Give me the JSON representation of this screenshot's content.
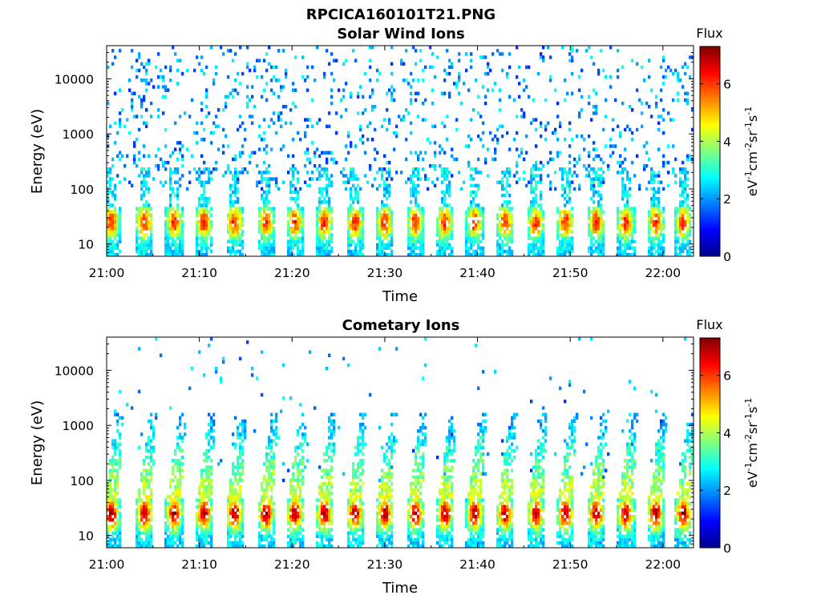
{
  "figure": {
    "title": "RPCICA160101T21.PNG"
  },
  "chart_data": [
    {
      "type": "heatmap",
      "title": "Solar Wind Ions",
      "xlabel": "Time",
      "ylabel": "Energy (eV)",
      "x_ticks": [
        "21:00",
        "21:10",
        "21:20",
        "21:30",
        "21:40",
        "21:50",
        "22:00"
      ],
      "x_range": [
        "21:00",
        "22:03"
      ],
      "y_scale": "log",
      "y_ticks": [
        10,
        100,
        1000,
        10000
      ],
      "y_tick_labels": [
        "10",
        "100",
        "1000",
        "10000"
      ],
      "y_range": [
        6,
        40000
      ],
      "colorbar": {
        "title": "Flux",
        "label": "eV-1cm-2sr-1s-1",
        "range": [
          0,
          7.3
        ],
        "ticks": [
          0,
          2,
          4,
          6
        ],
        "colormap": "jet"
      },
      "pulse_times_min": [
        0.5,
        4.1,
        7.3,
        10.5,
        13.8,
        17.2,
        20.3,
        23.5,
        26.8,
        30.0,
        33.3,
        36.5,
        39.7,
        43.0,
        46.3,
        49.5,
        52.8,
        56.0,
        59.2,
        62.2
      ],
      "band_peak_energy_eV": 25,
      "band_peak_flux": 6.2,
      "background": "sparse low-flux counts (about 2) between 100 eV and 30000 eV"
    },
    {
      "type": "heatmap",
      "title": "Cometary Ions",
      "xlabel": "Time",
      "ylabel": "Energy (eV)",
      "x_ticks": [
        "21:00",
        "21:10",
        "21:20",
        "21:30",
        "21:40",
        "21:50",
        "22:00"
      ],
      "x_range": [
        "21:00",
        "22:03"
      ],
      "y_scale": "log",
      "y_ticks": [
        10,
        100,
        1000,
        10000
      ],
      "y_tick_labels": [
        "10",
        "100",
        "1000",
        "10000"
      ],
      "y_range": [
        6,
        40000
      ],
      "colorbar": {
        "title": "Flux",
        "label": "eV-1cm-2sr-1s-1",
        "range": [
          0,
          7.3
        ],
        "ticks": [
          0,
          2,
          4,
          6
        ],
        "colormap": "jet"
      },
      "pulse_times_min": [
        0.5,
        4.1,
        7.3,
        10.5,
        13.8,
        17.2,
        20.3,
        23.5,
        26.8,
        30.0,
        33.3,
        36.5,
        39.7,
        43.0,
        46.3,
        49.5,
        52.8,
        56.0,
        59.2,
        62.2
      ],
      "band_peak_energy_eV": 25,
      "band_peak_flux": 7.0,
      "plume_top_energy_eV": 1000
    }
  ]
}
